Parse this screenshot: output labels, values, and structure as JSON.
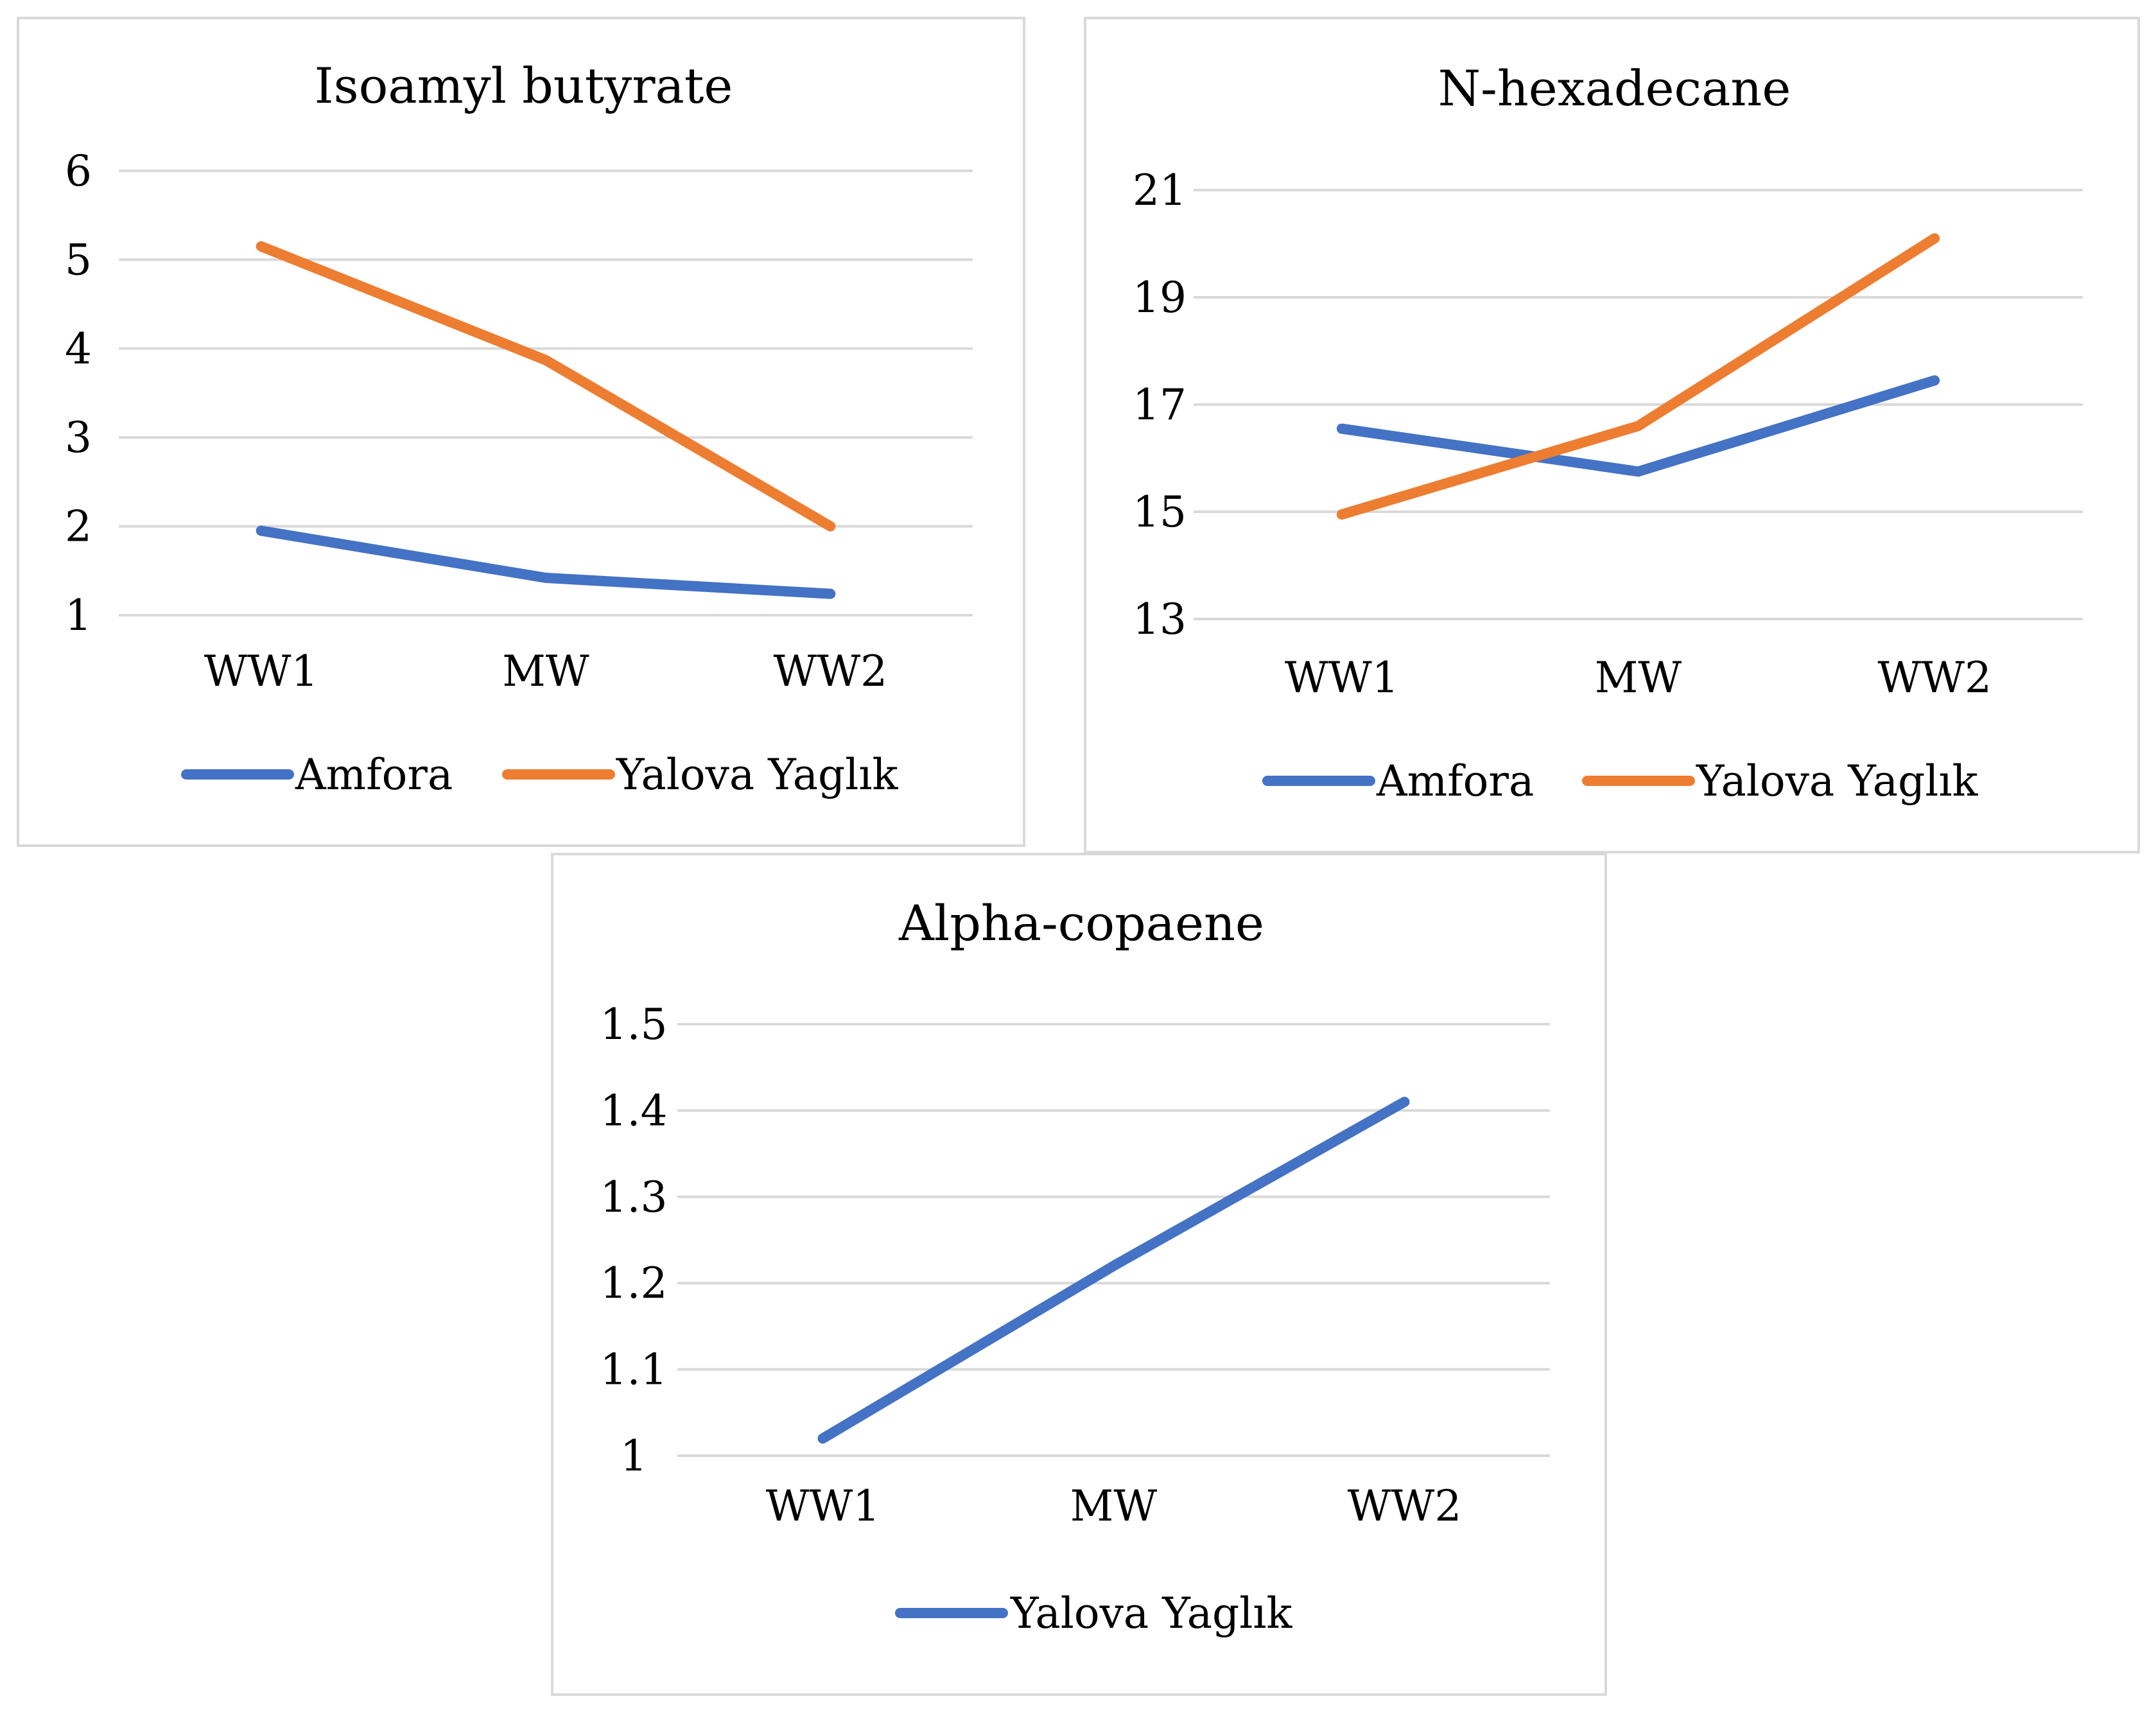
{
  "chart_data": [
    {
      "type": "line",
      "title": "Isoamyl butyrate",
      "categories": [
        "WW1",
        "MW",
        "WW2"
      ],
      "series": [
        {
          "name": "Amfora",
          "values": [
            1.95,
            1.42,
            1.24
          ],
          "color": "#4472c4"
        },
        {
          "name": "Yalova Yaglık",
          "values": [
            5.15,
            3.87,
            2.0
          ],
          "color": "#ed7d31"
        }
      ],
      "yticks": [
        "1",
        "2",
        "3",
        "4",
        "5",
        "6"
      ],
      "ylim": [
        1,
        6
      ],
      "grid": true,
      "legend": "bottom"
    },
    {
      "type": "line",
      "title": "N-hexadecane",
      "categories": [
        "WW1",
        "MW",
        "WW2"
      ],
      "series": [
        {
          "name": "Amfora",
          "values": [
            16.55,
            15.75,
            17.45
          ],
          "color": "#4472c4"
        },
        {
          "name": "Yalova Yaglık",
          "values": [
            14.95,
            16.6,
            20.1
          ],
          "color": "#ed7d31"
        }
      ],
      "yticks": [
        "13",
        "15",
        "17",
        "19",
        "21"
      ],
      "ylim": [
        13,
        21
      ],
      "grid": true,
      "legend": "bottom"
    },
    {
      "type": "line",
      "title": "Alpha-copaene",
      "categories": [
        "WW1",
        "MW",
        "WW2"
      ],
      "series": [
        {
          "name": "Yalova Yaglık",
          "values": [
            1.02,
            1.22,
            1.41
          ],
          "color": "#4472c4"
        }
      ],
      "yticks": [
        "1",
        "1.1",
        "1.2",
        "1.3",
        "1.4",
        "1.5"
      ],
      "ylim": [
        1,
        1.5
      ],
      "grid": true,
      "legend": "bottom"
    }
  ]
}
